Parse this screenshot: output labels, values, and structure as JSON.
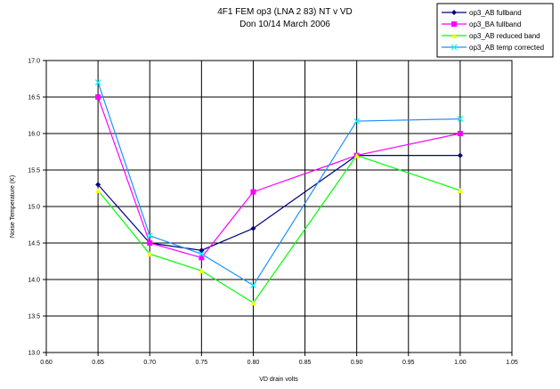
{
  "chart_data": {
    "type": "line",
    "title": "4F1 FEM op3 (LNA 2 83) NT v VD",
    "subtitle": "Don 10/14 March 2006",
    "xlabel": "VD drain volts",
    "ylabel": "Noise Temperature (K)",
    "xlim": [
      0.6,
      1.05
    ],
    "ylim": [
      13.0,
      17.0
    ],
    "xticks": [
      "0.60",
      "0.65",
      "0.70",
      "0.75",
      "0.80",
      "0.85",
      "0.90",
      "0.95",
      "1.00",
      "1.05"
    ],
    "yticks": [
      "13.0",
      "13.5",
      "14.0",
      "14.5",
      "15.0",
      "15.5",
      "16.0",
      "16.5",
      "17.0"
    ],
    "grid": true,
    "legend_position": "top-right",
    "x": [
      0.65,
      0.7,
      0.75,
      0.8,
      0.9,
      1.0
    ],
    "series": [
      {
        "name": "op3_AB fullband",
        "color": "#000080",
        "marker": "diamond",
        "values": [
          15.3,
          14.5,
          14.4,
          14.7,
          15.7,
          15.7
        ]
      },
      {
        "name": "op3_BA fullband",
        "color": "#ff00ff",
        "marker": "square",
        "values": [
          16.5,
          14.5,
          14.3,
          15.2,
          15.7,
          16.0
        ]
      },
      {
        "name": "op3_AB reduced band",
        "color": "#00ff00",
        "marker_color": "#ffff00",
        "marker": "triangle",
        "values": [
          15.22,
          14.35,
          14.12,
          13.68,
          15.7,
          15.22
        ]
      },
      {
        "name": "op3_AB temp corrected",
        "color": "#1e90ff",
        "marker_color": "#00ffff",
        "marker": "x",
        "values": [
          16.7,
          14.6,
          14.35,
          13.92,
          16.17,
          16.2
        ]
      }
    ]
  }
}
